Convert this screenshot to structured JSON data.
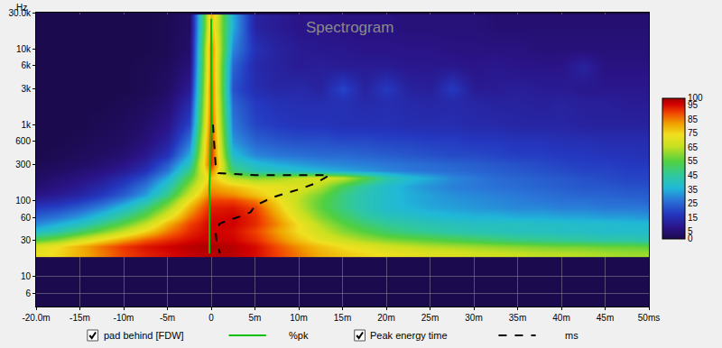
{
  "chart_data": {
    "type": "heatmap",
    "title": "Spectrogram",
    "y_label": "Hz",
    "log": "y",
    "grid": true,
    "xlim": [
      -20,
      50
    ],
    "xticks": [
      {
        "value": -20,
        "label": "-20.0m"
      },
      {
        "value": -15,
        "label": "-15m"
      },
      {
        "value": -10,
        "label": "-10m"
      },
      {
        "value": -5,
        "label": "-5m"
      },
      0,
      {
        "value": 5,
        "label": "5m"
      },
      {
        "value": 10,
        "label": "10m"
      },
      {
        "value": 15,
        "label": "15m"
      },
      {
        "value": 20,
        "label": "20m"
      },
      {
        "value": 25,
        "label": "25m"
      },
      {
        "value": 30,
        "label": "30m"
      },
      {
        "value": 35,
        "label": "35m"
      },
      {
        "value": 40,
        "label": "40m"
      },
      {
        "value": 45,
        "label": "45m"
      },
      {
        "value": 50,
        "label": "50ms"
      }
    ],
    "ylim": [
      4,
      30000
    ],
    "yticks": [
      6,
      10,
      30,
      60,
      100,
      300,
      600,
      {
        "value": 1000,
        "label": "1k"
      },
      {
        "value": 3000,
        "label": "3k"
      },
      {
        "value": 6000,
        "label": "6k"
      },
      {
        "value": 10000,
        "label": "10k"
      },
      {
        "value": 30000,
        "label": "30.0k"
      }
    ],
    "x": [
      -20,
      -17.5,
      -15,
      -12.5,
      -10,
      -7.5,
      -5,
      -2.5,
      0,
      2.5,
      5,
      7.5,
      10,
      12.5,
      15,
      17.5,
      20,
      22.5,
      25,
      27.5,
      30,
      32.5,
      35,
      37.5,
      40,
      42.5,
      45,
      47.5,
      50
    ],
    "y": [
      20,
      25,
      30,
      40,
      50,
      60,
      80,
      100,
      120,
      150,
      200,
      250,
      300,
      400,
      600,
      1000,
      2000,
      3000,
      6000,
      10000,
      20000
    ],
    "cells": [
      [
        72,
        75,
        80,
        85,
        90,
        93,
        95,
        97,
        98,
        98,
        95,
        90,
        85,
        80,
        77,
        75,
        73,
        72,
        70,
        70,
        68,
        67,
        66,
        65,
        65,
        64,
        63,
        62,
        62
      ],
      [
        70,
        74,
        80,
        86,
        91,
        94,
        96,
        98,
        99,
        98,
        95,
        89,
        83,
        78,
        74,
        71,
        68,
        66,
        64,
        63,
        62,
        61,
        60,
        59,
        58,
        58,
        57,
        57,
        56
      ],
      [
        55,
        60,
        68,
        75,
        82,
        88,
        92,
        95,
        97,
        96,
        92,
        85,
        78,
        72,
        67,
        63,
        60,
        58,
        56,
        54,
        52,
        50,
        48,
        47,
        46,
        45,
        44,
        44,
        43
      ],
      [
        38,
        43,
        50,
        58,
        66,
        75,
        85,
        92,
        96,
        95,
        90,
        82,
        74,
        67,
        60,
        55,
        50,
        47,
        45,
        43,
        42,
        41,
        40,
        40,
        39,
        39,
        38,
        38,
        38
      ],
      [
        30,
        35,
        40,
        48,
        56,
        66,
        80,
        90,
        96,
        96,
        92,
        84,
        74,
        64,
        56,
        50,
        46,
        44,
        42,
        41,
        40,
        40,
        40,
        39,
        39,
        38,
        38,
        37,
        37
      ],
      [
        25,
        28,
        33,
        40,
        48,
        58,
        72,
        86,
        95,
        96,
        92,
        82,
        70,
        60,
        52,
        46,
        42,
        40,
        38,
        37,
        36,
        36,
        35,
        35,
        34,
        34,
        33,
        33,
        32
      ],
      [
        18,
        20,
        24,
        30,
        38,
        48,
        62,
        80,
        93,
        94,
        90,
        78,
        66,
        56,
        48,
        42,
        38,
        36,
        34,
        33,
        32,
        31,
        30,
        30,
        29,
        29,
        28,
        28,
        28
      ],
      [
        12,
        14,
        18,
        23,
        30,
        40,
        55,
        74,
        90,
        90,
        85,
        75,
        65,
        56,
        48,
        42,
        38,
        35,
        33,
        32,
        31,
        30,
        29,
        28,
        27,
        27,
        26,
        26,
        25
      ],
      [
        8,
        10,
        13,
        18,
        24,
        33,
        48,
        68,
        86,
        84,
        78,
        72,
        66,
        58,
        48,
        42,
        38,
        35,
        33,
        31,
        30,
        29,
        28,
        27,
        26,
        25,
        25,
        24,
        24
      ],
      [
        5,
        7,
        10,
        14,
        20,
        28,
        42,
        62,
        82,
        78,
        74,
        72,
        70,
        64,
        52,
        44,
        38,
        34,
        31,
        29,
        28,
        27,
        26,
        25,
        24,
        23,
        23,
        22,
        22
      ],
      [
        3,
        5,
        7,
        10,
        15,
        22,
        35,
        55,
        78,
        65,
        60,
        62,
        66,
        70,
        66,
        55,
        44,
        38,
        34,
        30,
        28,
        26,
        25,
        24,
        23,
        22,
        21,
        20,
        20
      ],
      [
        2,
        3,
        5,
        7,
        10,
        16,
        28,
        48,
        85,
        50,
        42,
        40,
        38,
        36,
        34,
        32,
        30,
        28,
        27,
        26,
        25,
        24,
        23,
        22,
        21,
        20,
        20,
        19,
        19
      ],
      [
        1,
        2,
        3,
        5,
        8,
        13,
        24,
        42,
        92,
        45,
        38,
        35,
        33,
        31,
        30,
        29,
        28,
        27,
        26,
        25,
        24,
        23,
        22,
        21,
        20,
        19,
        19,
        18,
        18
      ],
      [
        0,
        1,
        2,
        3,
        5,
        9,
        17,
        35,
        92,
        38,
        30,
        28,
        27,
        26,
        26,
        25,
        24,
        23,
        22,
        21,
        21,
        20,
        19,
        19,
        18,
        18,
        17,
        17,
        16
      ],
      [
        0,
        0,
        1,
        2,
        3,
        6,
        12,
        28,
        92,
        32,
        25,
        23,
        22,
        22,
        21,
        21,
        20,
        20,
        19,
        19,
        18,
        18,
        17,
        17,
        16,
        16,
        15,
        15,
        15
      ],
      [
        0,
        0,
        0,
        1,
        2,
        4,
        8,
        20,
        90,
        28,
        20,
        18,
        17,
        17,
        16,
        16,
        16,
        15,
        15,
        15,
        14,
        14,
        13,
        13,
        13,
        12,
        12,
        12,
        12
      ],
      [
        0,
        0,
        0,
        0,
        1,
        2,
        5,
        14,
        88,
        25,
        18,
        16,
        15,
        15,
        16,
        14,
        15,
        14,
        13,
        14,
        13,
        12,
        12,
        11,
        12,
        11,
        11,
        10,
        10
      ],
      [
        0,
        0,
        0,
        0,
        0,
        1,
        3,
        10,
        88,
        22,
        15,
        13,
        14,
        12,
        20,
        12,
        18,
        12,
        11,
        18,
        10,
        10,
        11,
        10,
        10,
        9,
        9,
        9,
        9
      ],
      [
        0,
        0,
        0,
        0,
        0,
        1,
        2,
        6,
        86,
        25,
        14,
        12,
        10,
        11,
        10,
        10,
        10,
        9,
        9,
        9,
        8,
        9,
        8,
        8,
        8,
        12,
        7,
        7,
        7
      ],
      [
        0,
        0,
        0,
        0,
        0,
        0,
        1,
        4,
        86,
        30,
        16,
        12,
        10,
        9,
        9,
        8,
        8,
        8,
        8,
        7,
        7,
        7,
        7,
        6,
        6,
        6,
        6,
        6,
        6
      ],
      [
        0,
        0,
        0,
        0,
        0,
        0,
        1,
        3,
        80,
        35,
        12,
        10,
        8,
        8,
        7,
        7,
        7,
        6,
        6,
        6,
        6,
        5,
        5,
        5,
        5,
        5,
        5,
        5,
        5
      ]
    ],
    "color_range": [
      0,
      100
    ],
    "color_ticks": [
      0,
      5,
      15,
      25,
      35,
      45,
      55,
      65,
      75,
      85,
      95,
      100
    ],
    "series": [
      {
        "color": "#00c000",
        "line_style": "solid",
        "x": [
          0,
          0,
          -0.1,
          -0.2,
          -0.2
        ],
        "values": [
          25000,
          1000,
          300,
          150,
          20
        ]
      },
      {
        "color": "#000000",
        "line_style": "dashed",
        "x": [
          0.2,
          0.3,
          0.5,
          0.8,
          5,
          10,
          13.5,
          12,
          10,
          7,
          5,
          4.5,
          3,
          1,
          0.5,
          0.6,
          1
        ],
        "values": [
          1000,
          600,
          300,
          230,
          216,
          216,
          216,
          170,
          140,
          110,
          85,
          70,
          60,
          50,
          40,
          30,
          20
        ]
      }
    ],
    "annotations": [
      "pad behind [FDW]",
      "%pk",
      "Peak energy time",
      "ms"
    ]
  }
}
